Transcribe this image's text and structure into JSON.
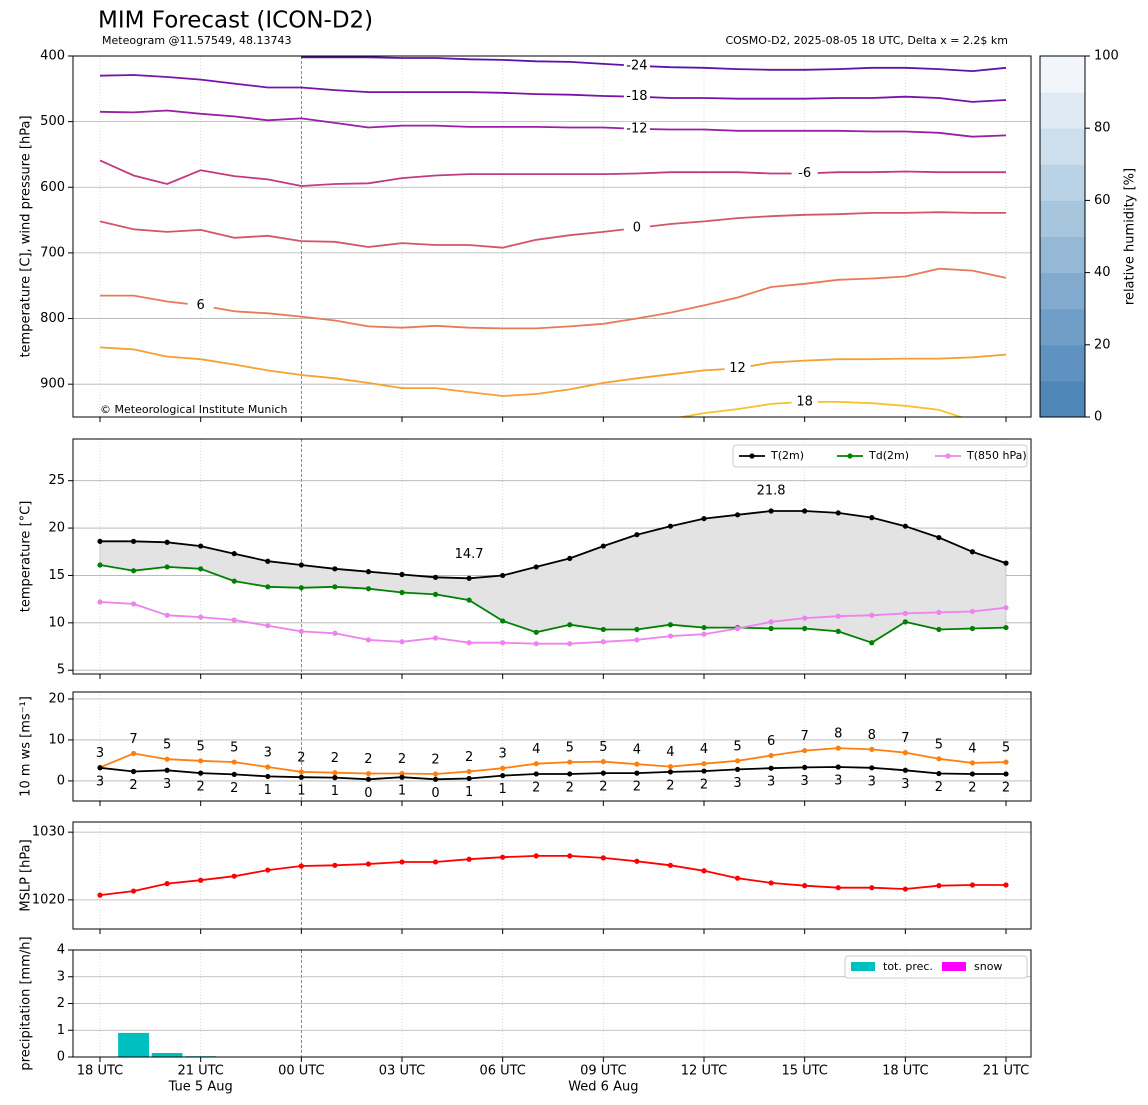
{
  "chart_data": [
    {
      "type": "contour",
      "title": "MIM Forecast (ICON-D2)",
      "subtitle": "Meteogram @11.57549, 48.13743",
      "subtitle_right": "COSMO-D2, 2025-08-05 18 UTC, Delta x = 2.2$ km",
      "credit": "© Meteorological Institute Munich",
      "ylabel": "temperature [C], wind pressure [hPa]",
      "ylim": [
        950,
        400
      ],
      "yticks": [
        400,
        500,
        600,
        700,
        800,
        900
      ],
      "grid": true,
      "series": [
        {
          "name": "-24",
          "color": "#5b14a8",
          "values": [
            null,
            null,
            null,
            null,
            null,
            null,
            402,
            402,
            402,
            403,
            403,
            405,
            406,
            408,
            409,
            412,
            415,
            417,
            418,
            420,
            421,
            421,
            420,
            418,
            418,
            420,
            423,
            418
          ]
        },
        {
          "name": "-18",
          "color": "#7a12a8",
          "values": [
            430,
            429,
            432,
            436,
            442,
            448,
            448,
            452,
            455,
            455,
            455,
            455,
            456,
            458,
            459,
            461,
            462,
            464,
            464,
            465,
            465,
            465,
            464,
            464,
            462,
            464,
            470,
            467
          ]
        },
        {
          "name": "-12",
          "color": "#9a1ea8",
          "values": [
            485,
            486,
            483,
            488,
            492,
            498,
            495,
            502,
            509,
            506,
            506,
            508,
            508,
            508,
            509,
            509,
            511,
            512,
            512,
            514,
            514,
            514,
            514,
            515,
            515,
            517,
            523,
            521
          ]
        },
        {
          "name": "-6",
          "color": "#c23a80",
          "values": [
            559,
            582,
            595,
            574,
            583,
            588,
            598,
            595,
            594,
            586,
            582,
            580,
            580,
            580,
            580,
            580,
            579,
            577,
            577,
            577,
            579,
            579,
            577,
            577,
            576,
            577,
            577,
            577
          ]
        },
        {
          "name": "0",
          "color": "#d4556a",
          "values": [
            652,
            664,
            668,
            665,
            677,
            674,
            682,
            683,
            691,
            685,
            688,
            688,
            692,
            680,
            673,
            668,
            662,
            656,
            652,
            647,
            644,
            642,
            641,
            639,
            639,
            638,
            639,
            639
          ]
        },
        {
          "name": "6",
          "color": "#e87a58",
          "values": [
            765,
            765,
            774,
            780,
            789,
            792,
            797,
            803,
            812,
            814,
            811,
            814,
            815,
            815,
            812,
            808,
            800,
            791,
            780,
            768,
            752,
            747,
            741,
            739,
            736,
            724,
            727,
            738
          ]
        },
        {
          "name": "12",
          "color": "#f5a031",
          "values": [
            844,
            847,
            858,
            862,
            870,
            879,
            886,
            891,
            898,
            906,
            906,
            912,
            918,
            915,
            908,
            898,
            891,
            885,
            879,
            876,
            867,
            864,
            862,
            862,
            861,
            861,
            859,
            855
          ]
        },
        {
          "name": "18",
          "color": "#f8c22a",
          "values": [
            null,
            null,
            null,
            null,
            null,
            null,
            null,
            null,
            null,
            null,
            null,
            null,
            null,
            null,
            null,
            null,
            null,
            953,
            944,
            938,
            930,
            927,
            927,
            929,
            933,
            939,
            956,
            null
          ]
        }
      ],
      "colorbar": {
        "label": "relative humidity [%]",
        "lim": [
          0,
          100
        ],
        "ticks": [
          0,
          20,
          40,
          60,
          80,
          100
        ],
        "colors": [
          "#4f86b8",
          "#5f92c0",
          "#709ec7",
          "#82aacf",
          "#95b8d6",
          "#a8c5de",
          "#bad2e6",
          "#cddfed",
          "#e0eaf4",
          "#f2f6fb"
        ]
      }
    },
    {
      "type": "line",
      "ylabel": "temperature [°C]",
      "ylim": [
        4.6,
        29.4
      ],
      "yticks": [
        5,
        10,
        15,
        20,
        25
      ],
      "grid": true,
      "legend": "upper right",
      "fill_between": {
        "series": [
          0,
          1
        ],
        "color": "#e3e3e3"
      },
      "extreme_labels": {
        "series": 0,
        "min_color": "#0000cc",
        "max_color": "#ee0000"
      },
      "series": [
        {
          "name": "T(2m)",
          "color": "#000000",
          "values": [
            18.6,
            18.6,
            18.5,
            18.1,
            17.3,
            16.5,
            16.1,
            15.7,
            15.4,
            15.1,
            14.8,
            14.7,
            15.0,
            15.9,
            16.8,
            18.1,
            19.3,
            20.2,
            21.0,
            21.4,
            21.8,
            21.8,
            21.6,
            21.1,
            20.2,
            19.0,
            17.5,
            16.3
          ]
        },
        {
          "name": "Td(2m)",
          "color": "#008000",
          "values": [
            16.1,
            15.5,
            15.9,
            15.7,
            14.4,
            13.8,
            13.7,
            13.8,
            13.6,
            13.2,
            13.0,
            12.4,
            10.2,
            9.0,
            9.8,
            9.3,
            9.3,
            9.8,
            9.5,
            9.5,
            9.4,
            9.4,
            9.1,
            7.9,
            10.1,
            9.3,
            9.4,
            9.5
          ]
        },
        {
          "name": "T(850 hPa)",
          "color": "#ee82ee",
          "values": [
            12.2,
            12.0,
            10.8,
            10.6,
            10.3,
            9.7,
            9.1,
            8.9,
            8.2,
            8.0,
            8.4,
            7.9,
            7.9,
            7.8,
            7.8,
            8.0,
            8.2,
            8.6,
            8.8,
            9.4,
            10.1,
            10.5,
            10.7,
            10.8,
            11.0,
            11.1,
            11.2,
            11.6
          ]
        }
      ]
    },
    {
      "type": "line",
      "ylabel": "10 m ws [ms⁻¹]",
      "ylim": [
        -4.9,
        21.7
      ],
      "yticks": [
        0,
        10,
        20
      ],
      "grid": true,
      "series": [
        {
          "color": "#ff7f0e",
          "label_pos": "above",
          "values": [
            3.3,
            6.7,
            5.3,
            4.9,
            4.6,
            3.4,
            2.2,
            2.0,
            1.8,
            1.8,
            1.7,
            2.3,
            3.1,
            4.2,
            4.6,
            4.7,
            4.1,
            3.5,
            4.2,
            4.9,
            6.2,
            7.4,
            8.0,
            7.7,
            6.9,
            5.4,
            4.4,
            4.6
          ],
          "value_labels": [
            "3",
            "7",
            "5",
            "5",
            "5",
            "3",
            "2",
            "2",
            "2",
            "2",
            "2",
            "2",
            "3",
            "4",
            "5",
            "5",
            "4",
            "4",
            "4",
            "5",
            "6",
            "7",
            "8",
            "8",
            "7",
            "5",
            "4",
            "5"
          ]
        },
        {
          "color": "#000000",
          "label_pos": "below",
          "values": [
            3.2,
            2.3,
            2.6,
            1.9,
            1.6,
            1.1,
            0.9,
            0.8,
            0.4,
            0.9,
            0.4,
            0.6,
            1.3,
            1.7,
            1.7,
            1.9,
            1.9,
            2.2,
            2.4,
            2.8,
            3.1,
            3.3,
            3.4,
            3.2,
            2.6,
            1.8,
            1.7,
            1.7
          ],
          "value_labels": [
            "3",
            "2",
            "3",
            "2",
            "2",
            "1",
            "1",
            "1",
            "0",
            "1",
            "0",
            "1",
            "1",
            "2",
            "2",
            "2",
            "2",
            "2",
            "2",
            "3",
            "3",
            "3",
            "3",
            "3",
            "3",
            "2",
            "2",
            "2"
          ]
        }
      ]
    },
    {
      "type": "line",
      "ylabel": "MSLP [hPa]",
      "ylim": [
        1015.7,
        1031.5
      ],
      "yticks": [
        1020,
        1030
      ],
      "grid": true,
      "series": [
        {
          "color": "#ff0000",
          "values": [
            1020.7,
            1021.3,
            1022.4,
            1022.9,
            1023.5,
            1024.4,
            1025.0,
            1025.1,
            1025.3,
            1025.6,
            1025.6,
            1026.0,
            1026.3,
            1026.5,
            1026.5,
            1026.2,
            1025.7,
            1025.1,
            1024.3,
            1023.2,
            1022.5,
            1022.1,
            1021.8,
            1021.8,
            1021.6,
            1022.1,
            1022.2,
            1022.2
          ]
        }
      ]
    },
    {
      "type": "bar",
      "ylabel": "precipitation [mm/h]",
      "ylim": [
        0,
        4
      ],
      "yticks": [
        0,
        1,
        2,
        3,
        4
      ],
      "grid": true,
      "legend": "upper right",
      "categories": [
        "18 UTC",
        null,
        null,
        "21 UTC",
        null,
        null,
        "00 UTC",
        null,
        null,
        "03 UTC",
        null,
        null,
        "06 UTC",
        null,
        null,
        "09 UTC",
        null,
        null,
        "12 UTC",
        null,
        null,
        "15 UTC",
        null,
        null,
        "18 UTC",
        null,
        null,
        "21 UTC"
      ],
      "category_groups": [
        null,
        null,
        null,
        "Tue 5 Aug",
        null,
        null,
        null,
        null,
        null,
        null,
        null,
        null,
        null,
        null,
        null,
        "Wed 6 Aug",
        null,
        null,
        null,
        null,
        null,
        null,
        null,
        null,
        null,
        null,
        null,
        null
      ],
      "series": [
        {
          "name": "tot. prec.",
          "color": "#00bfbf",
          "values": [
            0,
            0.9,
            0.15,
            0.03,
            0,
            0,
            0,
            0,
            0,
            0,
            0,
            0,
            0,
            0,
            0,
            0,
            0,
            0,
            0,
            0,
            0,
            0,
            0,
            0,
            0,
            0,
            0,
            0
          ]
        },
        {
          "name": "snow",
          "color": "#ff00ff",
          "values": [
            0,
            0,
            0,
            0,
            0,
            0,
            0,
            0,
            0,
            0,
            0,
            0,
            0,
            0,
            0,
            0,
            0,
            0,
            0,
            0,
            0,
            0,
            0,
            0,
            0,
            0,
            0,
            0
          ]
        }
      ]
    }
  ]
}
